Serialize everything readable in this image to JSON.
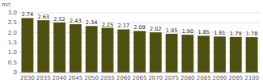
{
  "chart_data": {
    "type": "bar",
    "y_label": "mn",
    "categories": [
      "2030",
      "2035",
      "2040",
      "2045",
      "2050",
      "2055",
      "2060",
      "2065",
      "2070",
      "2075",
      "2080",
      "2085",
      "2090",
      "2095",
      "2100"
    ],
    "values": [
      2.74,
      2.63,
      2.52,
      2.43,
      2.34,
      2.25,
      2.17,
      2.09,
      2.02,
      1.95,
      1.9,
      1.85,
      1.81,
      1.79,
      1.78
    ],
    "value_labels": [
      "2.74",
      "2.63",
      "2.52",
      "2.43",
      "2.34",
      "2.25",
      "2.17",
      "2.09",
      "2.02",
      "1.95",
      "1.90",
      "1.85",
      "1.81",
      "1.79",
      "1.78"
    ],
    "color": "#4f4f12",
    "ylim": [
      0,
      3.0
    ],
    "yticks": [
      0,
      0.5,
      {
        "value": 1,
        "label": "1.0"
      },
      1.5,
      {
        "value": 2,
        "label": "2.0"
      },
      2.5,
      {
        "value": 3,
        "label": "3.0"
      }
    ],
    "grid": true,
    "data_labels": true
  }
}
